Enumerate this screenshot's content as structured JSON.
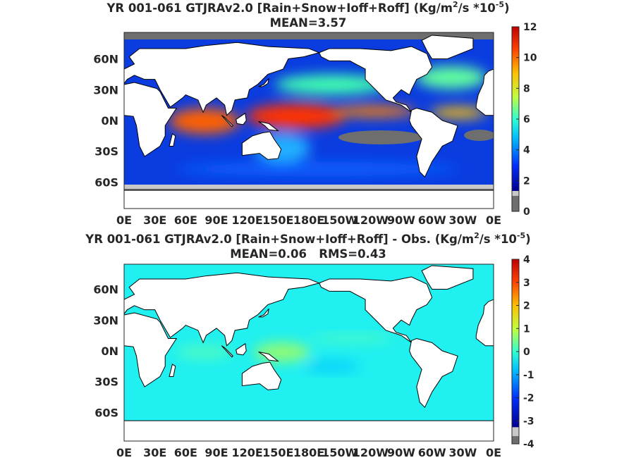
{
  "panels": [
    {
      "title_parts": [
        "YR 001-061 GTJRAv2.0 [Rain+Snow+Ioff+Roff] (Kg/m",
        "2",
        "/s *10",
        "-5",
        ")"
      ],
      "subtitle": "MEAN=3.57",
      "lat_labels": [
        "60N",
        "30N",
        "0N",
        "30S",
        "60S"
      ],
      "lon_labels": [
        "0E",
        "30E",
        "60E",
        "90E",
        "120E",
        "150E",
        "180E",
        "150W",
        "120W",
        "90W",
        "60W",
        "30W",
        "0E"
      ],
      "colorbar_lim": [
        0,
        12
      ],
      "colorbar_ticks": [
        0,
        2,
        4,
        6,
        8,
        10,
        12
      ]
    },
    {
      "title_parts": [
        "YR 001-061 GTJRAv2.0 [Rain+Snow+Ioff+Roff] - Obs. (Kg/m",
        "2",
        "/s *10",
        "-5",
        ")"
      ],
      "subtitle": "MEAN=0.06   RMS=0.43",
      "lat_labels": [
        "60N",
        "30N",
        "0N",
        "30S",
        "60S"
      ],
      "lon_labels": [
        "0E",
        "30E",
        "60E",
        "90E",
        "120E",
        "150E",
        "180E",
        "150W",
        "120W",
        "90W",
        "60W",
        "30W",
        "0E"
      ],
      "colorbar_lim": [
        -4,
        4
      ],
      "colorbar_ticks": [
        -4,
        -3,
        -2,
        -1,
        0,
        1,
        2,
        3,
        4
      ]
    }
  ]
}
